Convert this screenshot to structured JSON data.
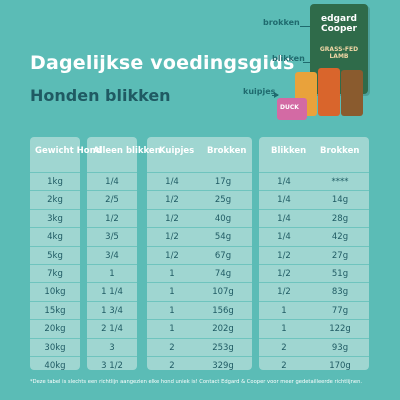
{
  "header": {
    "title": "Dagelijkse voedingsgids",
    "subtitle": "Honden blikken"
  },
  "product_tags": {
    "brokken": "brokken",
    "blikken": "blikken",
    "kuipjes": "kuipjes"
  },
  "product_art": {
    "brand": "edgard Cooper",
    "flavour": "GRASS-FED LAMB",
    "tray_label": "DUCK"
  },
  "table": {
    "columns": {
      "weight": "Gewicht Hond",
      "cans_only": "Alleen blikken",
      "tubs": "Kuipjes",
      "kibble_with_tubs": "Brokken",
      "cans": "Blikken",
      "kibble_with_cans": "Brokken"
    },
    "rows": [
      {
        "weight": "1kg",
        "cans_only": "1/4",
        "tubs": "1/4",
        "kibble_tubs": "17g",
        "cans": "1/4",
        "kibble_cans": "****"
      },
      {
        "weight": "2kg",
        "cans_only": "2/5",
        "tubs": "1/2",
        "kibble_tubs": "25g",
        "cans": "1/4",
        "kibble_cans": "14g"
      },
      {
        "weight": "3kg",
        "cans_only": "1/2",
        "tubs": "1/2",
        "kibble_tubs": "40g",
        "cans": "1/4",
        "kibble_cans": "28g"
      },
      {
        "weight": "4kg",
        "cans_only": "3/5",
        "tubs": "1/2",
        "kibble_tubs": "54g",
        "cans": "1/4",
        "kibble_cans": "42g"
      },
      {
        "weight": "5kg",
        "cans_only": "3/4",
        "tubs": "1/2",
        "kibble_tubs": "67g",
        "cans": "1/2",
        "kibble_cans": "27g"
      },
      {
        "weight": "7kg",
        "cans_only": "1",
        "tubs": "1",
        "kibble_tubs": "74g",
        "cans": "1/2",
        "kibble_cans": "51g"
      },
      {
        "weight": "10kg",
        "cans_only": "1 1/4",
        "tubs": "1",
        "kibble_tubs": "107g",
        "cans": "1/2",
        "kibble_cans": "83g"
      },
      {
        "weight": "15kg",
        "cans_only": "1 3/4",
        "tubs": "1",
        "kibble_tubs": "156g",
        "cans": "1",
        "kibble_cans": "77g"
      },
      {
        "weight": "20kg",
        "cans_only": "2 1/4",
        "tubs": "1",
        "kibble_tubs": "202g",
        "cans": "1",
        "kibble_cans": "122g"
      },
      {
        "weight": "30kg",
        "cans_only": "3",
        "tubs": "2",
        "kibble_tubs": "253g",
        "cans": "2",
        "kibble_cans": "93g"
      },
      {
        "weight": "40kg",
        "cans_only": "3 1/2",
        "tubs": "2",
        "kibble_tubs": "329g",
        "cans": "2",
        "kibble_cans": "170g"
      }
    ]
  },
  "footnote": "*Deze tabel is slechts een richtlijn aangezien elke hond uniek is! Contact Edgard & Cooper voor meer gedetailleerde richtlijnen.",
  "colors": {
    "background": "#5bbcb6",
    "panel": "#9fd6d1",
    "title": "#ffffff",
    "subtitle": "#1f5a63",
    "cell_text": "#1f5a63"
  }
}
